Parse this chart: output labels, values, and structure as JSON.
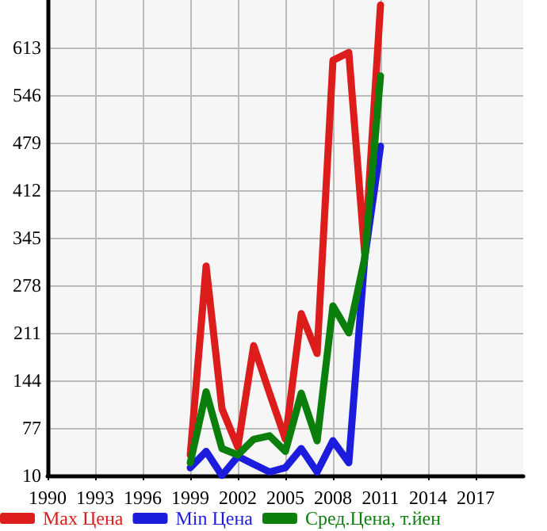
{
  "chart_data": {
    "type": "line",
    "x": [
      1999,
      2000,
      2001,
      2002,
      2003,
      2004,
      2005,
      2006,
      2007,
      2008,
      2009,
      2010,
      2011
    ],
    "series": [
      {
        "name": "Max Цена",
        "color": "#dd1c1c",
        "values": [
          39,
          305,
          104,
          50,
          193,
          126,
          61,
          238,
          182,
          595,
          606,
          323,
          673
        ]
      },
      {
        "name": "Min Цена",
        "color": "#1c1cdd",
        "values": [
          21,
          44,
          10,
          37,
          26,
          15,
          21,
          48,
          15,
          59,
          28,
          316,
          474
        ]
      },
      {
        "name": "Сред.Цена, т.йен",
        "color": "#0b7f0b",
        "values": [
          28,
          128,
          48,
          39,
          61,
          66,
          44,
          126,
          59,
          249,
          211,
          316,
          573
        ]
      }
    ],
    "xlim": [
      1990,
      2020
    ],
    "xticks": [
      1990,
      1993,
      1996,
      1999,
      2002,
      2005,
      2008,
      2011,
      2014,
      2017
    ],
    "ylim": [
      10,
      680
    ],
    "yticks": [
      10,
      77,
      144,
      211,
      278,
      345,
      412,
      479,
      546,
      613
    ],
    "grid": true,
    "legend": "bottom",
    "marker": "none",
    "line_style": "solid"
  }
}
